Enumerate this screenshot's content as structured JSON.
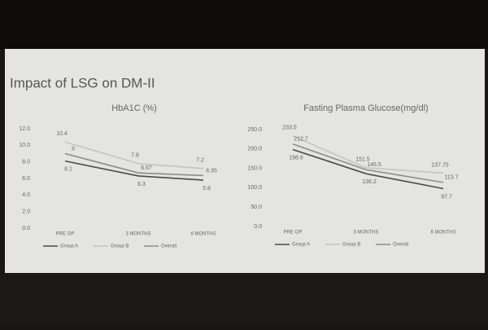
{
  "title": "Impact of LSG on DM-II",
  "chart_data": [
    {
      "type": "line",
      "title": "HbA1C (%)",
      "categories": [
        "PRE OP",
        "3 MONTHS",
        "6 MONTHS"
      ],
      "series": [
        {
          "name": "Group A",
          "color": "#4a4a4a",
          "values": [
            8.1,
            6.3,
            5.8
          ]
        },
        {
          "name": "Group B",
          "color": "#c4c4c4",
          "values": [
            10.4,
            7.8,
            7.2
          ]
        },
        {
          "name": "Overall",
          "color": "#8c8c8c",
          "values": [
            9,
            6.67,
            6.35
          ]
        }
      ],
      "ylim": [
        0,
        12
      ],
      "yticks": [
        {
          "value": 0,
          "label": "0.0"
        },
        {
          "value": 2,
          "label": "2.0"
        },
        {
          "value": 4,
          "label": "4.0"
        },
        {
          "value": 6,
          "label": "6.0"
        },
        {
          "value": 8,
          "label": "8.0"
        },
        {
          "value": 10,
          "label": "10.0"
        },
        {
          "value": 12,
          "label": "12.0"
        }
      ]
    },
    {
      "type": "line",
      "title": "Fasting Plasma Glucose(mg/dl)",
      "categories": [
        "PRE OP",
        "3 MONTHS",
        "6 MONTHS"
      ],
      "series": [
        {
          "name": "Group A",
          "color": "#4a4a4a",
          "values": [
            198.6,
            136.2,
            97.7
          ]
        },
        {
          "name": "Group B",
          "color": "#c4c4c4",
          "values": [
            233.5,
            151.5,
            137.75
          ]
        },
        {
          "name": "Overall",
          "color": "#8c8c8c",
          "values": [
            212.7,
            146.5,
            113.7
          ]
        }
      ],
      "ylim": [
        0,
        250
      ],
      "yticks": [
        {
          "value": 0,
          "label": "0.0"
        },
        {
          "value": 50,
          "label": "50.0"
        },
        {
          "value": 100,
          "label": "100.0"
        },
        {
          "value": 150,
          "label": "150.0"
        },
        {
          "value": 200,
          "label": "200.0"
        },
        {
          "value": 250,
          "label": "250.0"
        }
      ]
    }
  ]
}
